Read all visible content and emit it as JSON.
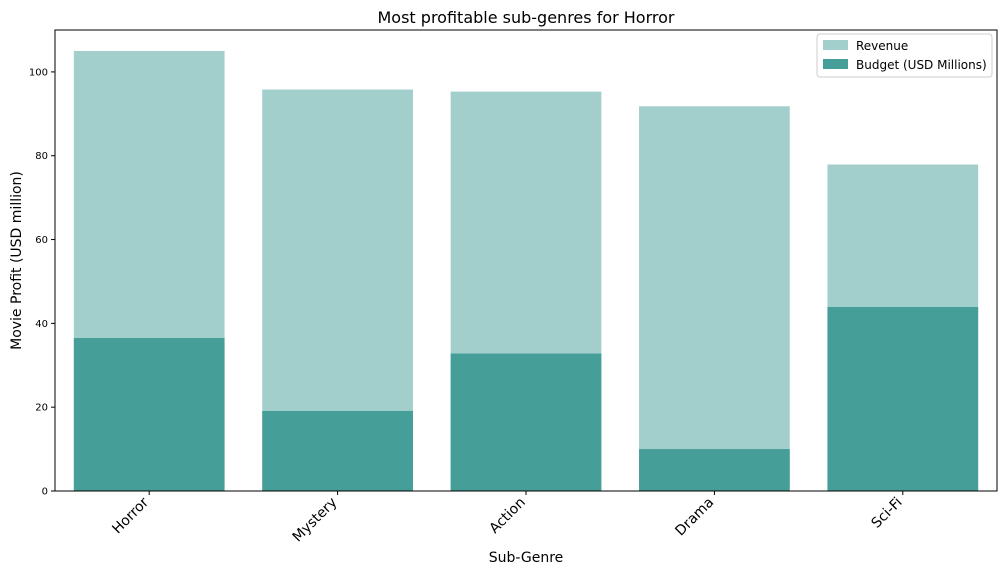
{
  "chart_data": {
    "type": "bar",
    "title": "Most profitable sub-genres for Horror",
    "xlabel": "Sub-Genre",
    "ylabel": "Movie Profit (USD million)",
    "categories": [
      "Horror",
      "Mystery",
      "Action",
      "Drama",
      "Sci-Fi"
    ],
    "series": [
      {
        "name": "Revenue",
        "values": [
          105.0,
          95.8,
          95.3,
          91.8,
          77.9
        ],
        "color": "#a2cfcc"
      },
      {
        "name": "Budget (USD Millions)",
        "values": [
          36.5,
          19.1,
          32.8,
          10.0,
          43.9
        ],
        "color": "#459e98"
      }
    ],
    "overlay": true,
    "ylim": [
      0,
      110
    ],
    "yticks": [
      "0",
      "20",
      "40",
      "60",
      "80",
      "100"
    ],
    "grid": false,
    "legend_position": "top-right"
  }
}
